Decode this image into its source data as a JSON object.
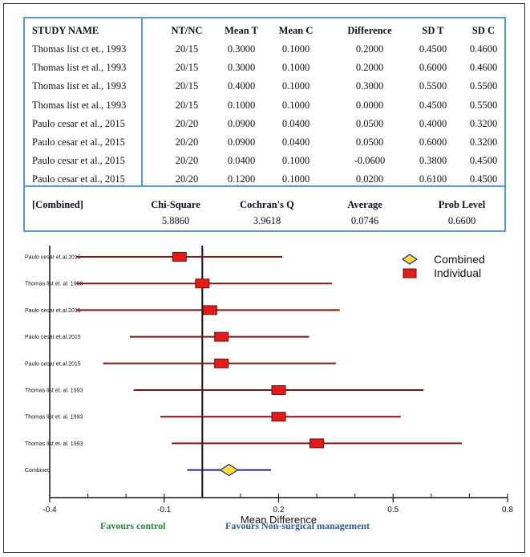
{
  "table": {
    "headers": [
      "STUDY NAME",
      "NT/NC",
      "Mean T",
      "Mean C",
      "Difference",
      "SD T",
      "SD C"
    ],
    "rows": [
      [
        "Thomas list ct et., 1993",
        "20/15",
        "0.3000",
        "0.1000",
        "0.2000",
        "0.4500",
        "0.4600"
      ],
      [
        "Thomas list et al., 1993",
        "20/15",
        "0.3000",
        "0.1000",
        "0.2000",
        "0.6000",
        "0.4600"
      ],
      [
        "Thomas list et al., 1993",
        "20/15",
        "0.4000",
        "0.1000",
        "0.3000",
        "0.5500",
        "0.5500"
      ],
      [
        "Thomas list et al., 1993",
        "20/15",
        "0.1000",
        "0.1000",
        "0.0000",
        "0.4500",
        "0.5500"
      ],
      [
        "Paulo cesar et al., 2015",
        "20/20",
        "0.0900",
        "0.0400",
        "0.0500",
        "0.4000",
        "0.3200"
      ],
      [
        "Paulo cesar et al., 2015",
        "20/20",
        "0.0900",
        "0.0400",
        "0.0500",
        "0.6000",
        "0.3200"
      ],
      [
        "Paulo cesar et al., 2015",
        "20/20",
        "0.0400",
        "0.1000",
        "-0.0600",
        "0.3800",
        "0.4500"
      ],
      [
        "Paulo cesar et al., 2015",
        "20/20",
        "0.1200",
        "0.1000",
        "0.0200",
        "0.6100",
        "0.4500"
      ]
    ],
    "combined": {
      "label": "[Combined]",
      "headers": [
        "Chi-Square",
        "Cochran's Q",
        "Average",
        "Prob Level"
      ],
      "values": [
        "5.8860",
        "3.9618",
        "0.0746",
        "0.6600"
      ]
    }
  },
  "chart_data": {
    "type": "forest",
    "xlabel": "Mean Difference",
    "xlim": [
      -0.4,
      0.8
    ],
    "xticks": [
      "-0.4",
      "-0.1",
      "0.2",
      "0.5",
      "0.8"
    ],
    "xtick_values": [
      -0.4,
      -0.1,
      0.2,
      0.5,
      0.8
    ],
    "reference_line": 0,
    "legend": {
      "combined": "Combined",
      "individual": "Individual",
      "position": "top-right"
    },
    "studies": [
      {
        "label": "Paulo cesar et.al.2015",
        "estimate": -0.06,
        "ci_low": -0.33,
        "ci_high": 0.21
      },
      {
        "label": "Thomas list et. al. 1993",
        "estimate": 0.0,
        "ci_low": -0.33,
        "ci_high": 0.34
      },
      {
        "label": "Paulo cesar et.al.2015",
        "estimate": 0.02,
        "ci_low": -0.33,
        "ci_high": 0.36
      },
      {
        "label": "Paulo cesar et.al.2015",
        "estimate": 0.05,
        "ci_low": -0.19,
        "ci_high": 0.28
      },
      {
        "label": "Paulo cesar et.al.2015",
        "estimate": 0.05,
        "ci_low": -0.26,
        "ci_high": 0.35
      },
      {
        "label": "Thomas list et. al. 1993",
        "estimate": 0.2,
        "ci_low": -0.18,
        "ci_high": 0.58
      },
      {
        "label": "Thomas list et. al. 1993",
        "estimate": 0.2,
        "ci_low": -0.11,
        "ci_high": 0.52
      },
      {
        "label": "Thomas list et. al. 1993",
        "estimate": 0.3,
        "ci_low": -0.08,
        "ci_high": 0.68
      }
    ],
    "combined": {
      "label": "Combined",
      "estimate": 0.07,
      "ci_low": -0.04,
      "ci_high": 0.18
    },
    "colors": {
      "ci_line": "#7a1616",
      "box_fill": "#e21b1b",
      "diamond_fill": "#f2dd3b",
      "combined_line": "#1f2a7a"
    }
  },
  "favours": {
    "left": "Favours control",
    "right": "Favours Non-surgical management",
    "left_color": "#1e8a3c",
    "right_color": "#2b5a9a"
  }
}
